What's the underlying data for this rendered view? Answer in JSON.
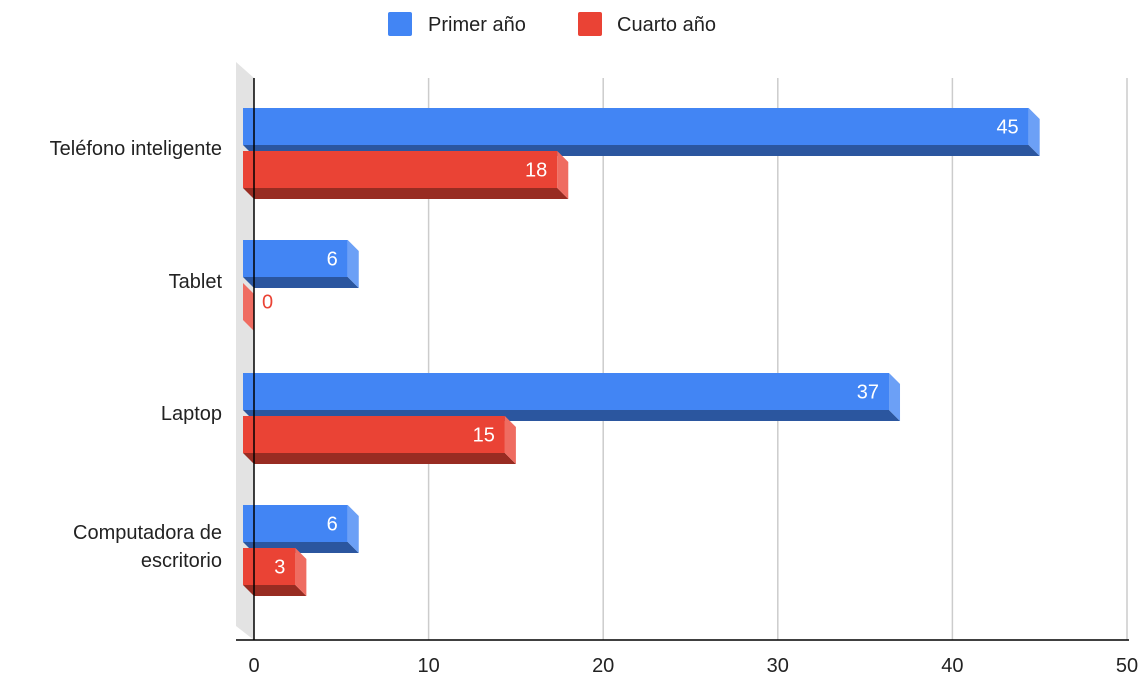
{
  "chart_data": {
    "type": "bar",
    "orientation": "horizontal",
    "style": "3d",
    "categories": [
      [
        "Teléfono inteligente"
      ],
      [
        "Tablet"
      ],
      [
        "Laptop"
      ],
      [
        "Computadora de",
        "escritorio"
      ]
    ],
    "series": [
      {
        "name": "Primer año",
        "color": "#4285f4",
        "values": [
          45,
          6,
          37,
          6
        ]
      },
      {
        "name": "Cuarto año",
        "color": "#ea4335",
        "values": [
          18,
          0,
          15,
          3
        ]
      }
    ],
    "xlim": [
      0,
      50
    ],
    "xticks": [
      0,
      10,
      20,
      30,
      40,
      50
    ],
    "grid": true,
    "legend_position": "top-center",
    "data_labels": true
  }
}
